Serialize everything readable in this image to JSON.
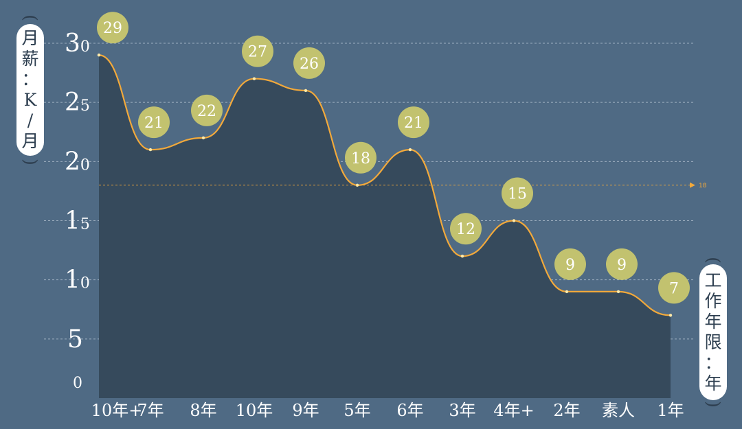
{
  "chart_data": {
    "type": "area",
    "categories": [
      "10年+",
      "7年",
      "8年",
      "10年",
      "9年",
      "5年",
      "6年",
      "3年",
      "4年+",
      "2年",
      "素人",
      "1年"
    ],
    "values": [
      29,
      21,
      22,
      27,
      26,
      18,
      21,
      12,
      15,
      9,
      9,
      7
    ],
    "ylabel": "(月薪：K/月)",
    "xlabel": "(工作年限：年)",
    "ylim": [
      0,
      30
    ],
    "yticks": [
      0,
      5,
      10,
      15,
      20,
      25,
      30
    ],
    "grid": true,
    "reference_line": {
      "value": 18,
      "label": "18"
    },
    "colors": {
      "background": "#4f6a84",
      "area_fill": "#364a5c",
      "line": "#f2a93b",
      "bubble": "#c2c26f",
      "grid": "#b9c6d3"
    }
  }
}
